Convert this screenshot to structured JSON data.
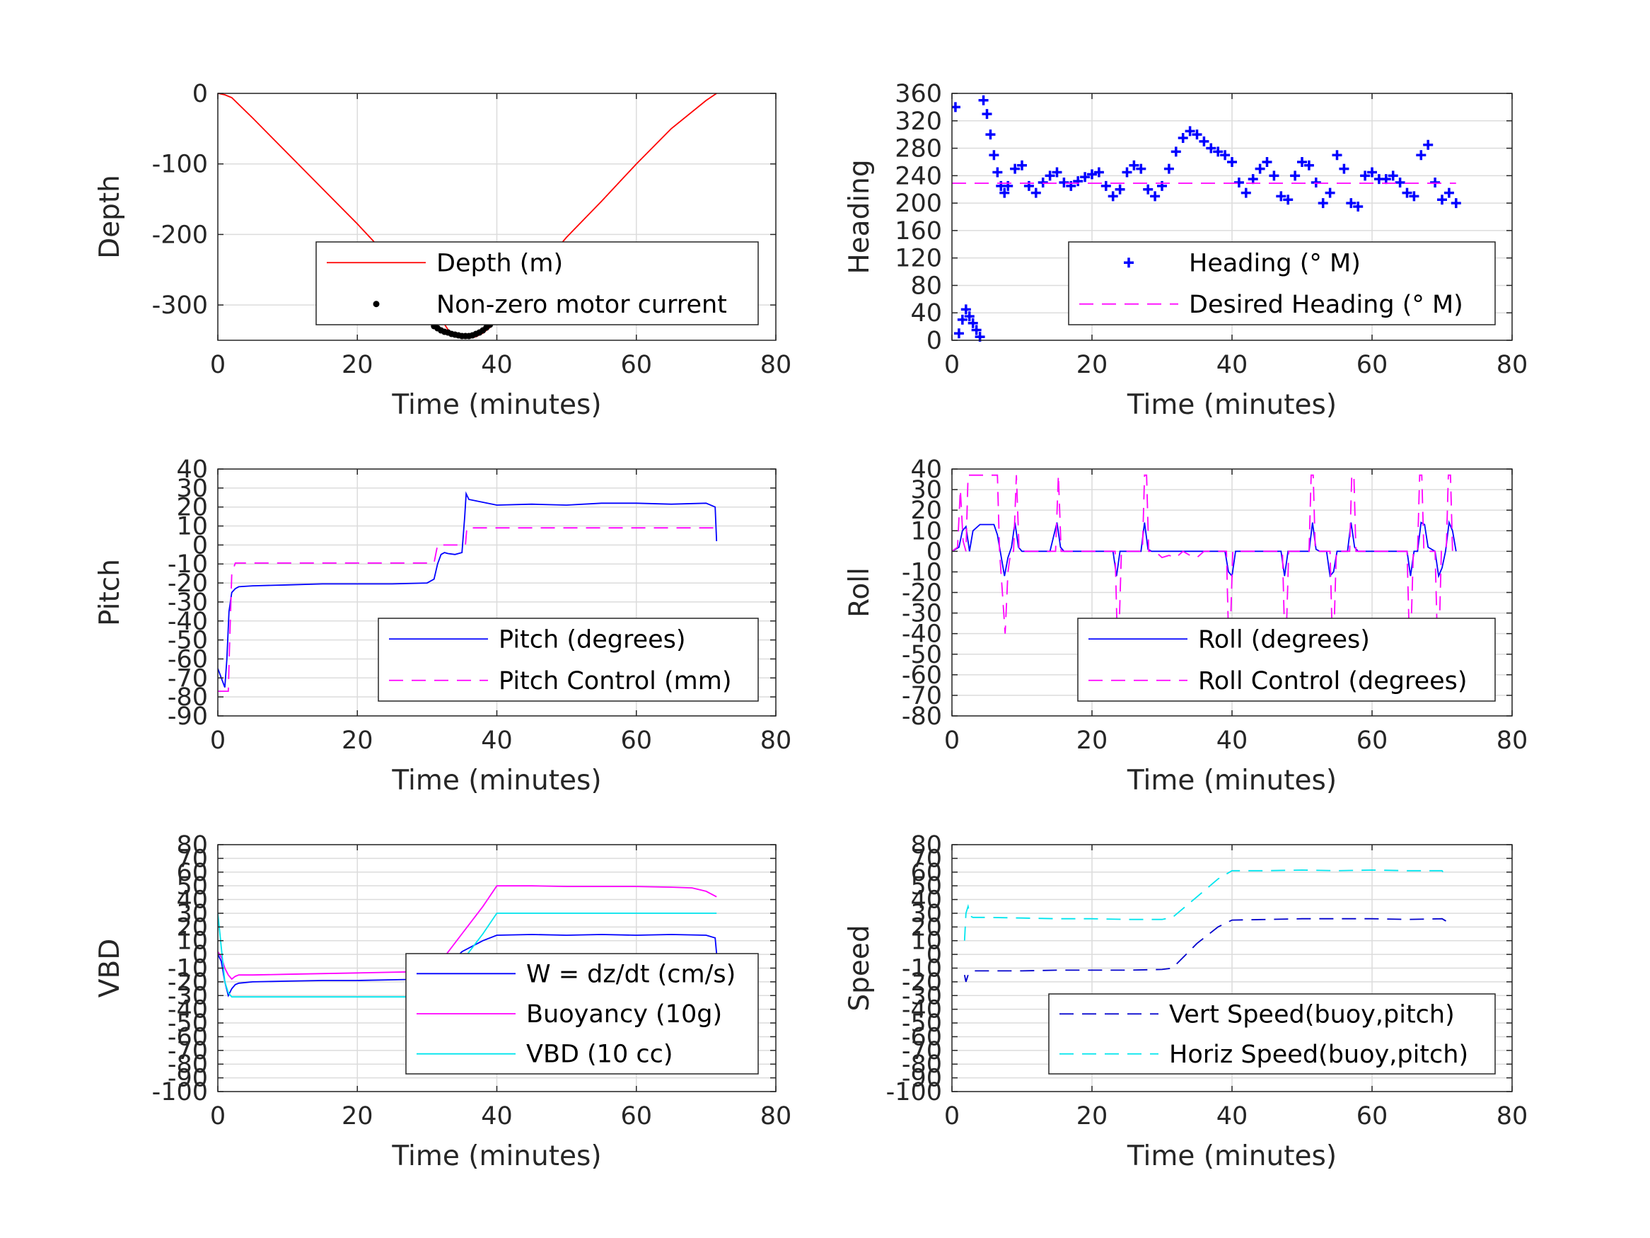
{
  "chart_data": [
    {
      "type": "line",
      "xlabel": "Time (minutes)",
      "ylabel": "Depth",
      "xlim": [
        0,
        80
      ],
      "ylim": [
        -350,
        0
      ],
      "xticks": [
        0,
        20,
        40,
        60,
        80
      ],
      "yticks": [
        0,
        -100,
        -200,
        -300
      ],
      "legend_position": "bottom-right",
      "series": [
        {
          "name": "Depth (m)",
          "color": "#ff0000",
          "style": "solid",
          "x": [
            0,
            1,
            2,
            5,
            10,
            15,
            20,
            25,
            30,
            31,
            32,
            33,
            34,
            35,
            36,
            37,
            38,
            39,
            40,
            45,
            50,
            55,
            60,
            65,
            70,
            71.5
          ],
          "y": [
            0,
            -2,
            -6,
            -35,
            -85,
            -135,
            -185,
            -238,
            -290,
            -300,
            -320,
            -335,
            -343,
            -346,
            -347,
            -345,
            -340,
            -332,
            -320,
            -262,
            -204,
            -153,
            -100,
            -50,
            -10,
            0
          ]
        },
        {
          "name": "Non-zero motor current",
          "color": "#000000",
          "style": "dots",
          "x": [
            31,
            31.5,
            32,
            32.5,
            33,
            33.5,
            34,
            34.5,
            35,
            35.5,
            36,
            36.5,
            37,
            37.5,
            38,
            38.5,
            39,
            39.5,
            40
          ],
          "y": [
            -330,
            -333,
            -336,
            -338,
            -339,
            -341,
            -342,
            -343,
            -344,
            -344,
            -344,
            -343,
            -341,
            -339,
            -336,
            -332,
            -328,
            -324,
            -320
          ]
        }
      ]
    },
    {
      "type": "line",
      "xlabel": "Time (minutes)",
      "ylabel": "Heading",
      "xlim": [
        0,
        80
      ],
      "ylim": [
        0,
        360
      ],
      "xticks": [
        0,
        20,
        40,
        60,
        80
      ],
      "yticks": [
        0,
        40,
        80,
        120,
        160,
        200,
        240,
        280,
        320,
        360
      ],
      "legend_position": "bottom-right",
      "series": [
        {
          "name": "Heading (° M)",
          "color": "#0000ff",
          "style": "plus",
          "x": [
            0.5,
            1,
            1.5,
            2,
            2.5,
            3,
            3.5,
            4,
            4.5,
            5,
            5.5,
            6,
            6.5,
            7,
            7.5,
            8,
            9,
            10,
            11,
            12,
            13,
            14,
            15,
            16,
            17,
            18,
            19,
            20,
            21,
            22,
            23,
            24,
            25,
            26,
            27,
            28,
            29,
            30,
            31,
            32,
            33,
            34,
            35,
            36,
            37,
            38,
            39,
            40,
            41,
            42,
            43,
            44,
            45,
            46,
            47,
            48,
            49,
            50,
            51,
            52,
            53,
            54,
            55,
            56,
            57,
            58,
            59,
            60,
            61,
            62,
            63,
            64,
            65,
            66,
            67,
            68,
            69,
            70,
            71,
            72
          ],
          "y": [
            340,
            10,
            30,
            45,
            35,
            25,
            15,
            5,
            350,
            330,
            300,
            270,
            245,
            225,
            215,
            225,
            250,
            255,
            225,
            215,
            230,
            240,
            245,
            230,
            225,
            232,
            238,
            242,
            245,
            225,
            210,
            220,
            245,
            255,
            250,
            220,
            210,
            225,
            250,
            275,
            295,
            305,
            300,
            290,
            280,
            275,
            270,
            260,
            230,
            215,
            235,
            250,
            260,
            240,
            210,
            205,
            240,
            260,
            255,
            230,
            200,
            215,
            270,
            250,
            200,
            195,
            240,
            245,
            235,
            235,
            240,
            230,
            215,
            210,
            270,
            285,
            230,
            205,
            215,
            200
          ]
        },
        {
          "name": "Desired Heading (° M)",
          "color": "#ff00ff",
          "style": "dashed",
          "x": [
            0,
            72
          ],
          "y": [
            229,
            229
          ]
        }
      ]
    },
    {
      "type": "line",
      "xlabel": "Time (minutes)",
      "ylabel": "Pitch",
      "xlim": [
        0,
        80
      ],
      "ylim": [
        -90,
        40
      ],
      "xticks": [
        0,
        20,
        40,
        60,
        80
      ],
      "yticks": [
        40,
        30,
        20,
        10,
        0,
        -10,
        -20,
        -30,
        -40,
        -50,
        -60,
        -70,
        -80,
        -90
      ],
      "legend_position": "bottom-right",
      "series": [
        {
          "name": "Pitch (degrees)",
          "color": "#0000ff",
          "style": "solid",
          "x": [
            0,
            0.5,
            1,
            1.3,
            1.6,
            2,
            2.5,
            3,
            5,
            10,
            15,
            20,
            25,
            30,
            31,
            31.5,
            32,
            32.5,
            33,
            34,
            35,
            35.4,
            35.6,
            36,
            40,
            45,
            50,
            55,
            60,
            65,
            70,
            71.3,
            71.5
          ],
          "y": [
            -65,
            -70,
            -75,
            -60,
            -35,
            -25,
            -23,
            -22,
            -21.5,
            -21,
            -20.5,
            -20.5,
            -20.5,
            -20,
            -18,
            -10,
            -5,
            -4,
            -4.5,
            -5,
            -4,
            15,
            27,
            24,
            21,
            21.5,
            21,
            22,
            22,
            21.5,
            22,
            20,
            2
          ]
        },
        {
          "name": "Pitch Control (mm)",
          "color": "#ff00ff",
          "style": "dashed",
          "x": [
            0,
            1.5,
            1.7,
            2,
            2.5,
            30,
            31,
            31.5,
            35.5,
            35.7,
            71.5
          ],
          "y": [
            -77,
            -77,
            -50,
            -15,
            -9.5,
            -9.5,
            -9.5,
            0,
            0,
            9,
            9
          ]
        }
      ]
    },
    {
      "type": "line",
      "xlabel": "Time (minutes)",
      "ylabel": "Roll",
      "xlim": [
        0,
        80
      ],
      "ylim": [
        -80,
        40
      ],
      "xticks": [
        0,
        20,
        40,
        60,
        80
      ],
      "yticks": [
        40,
        30,
        20,
        10,
        0,
        -10,
        -20,
        -30,
        -40,
        -50,
        -60,
        -70,
        -80
      ],
      "legend_position": "bottom-right",
      "series": [
        {
          "name": "Roll (degrees)",
          "color": "#0000ff",
          "style": "solid",
          "x": [
            0,
            1,
            1.5,
            2,
            2.5,
            3,
            4,
            5,
            6,
            6.5,
            7,
            7.5,
            8,
            8.5,
            9,
            9.5,
            10,
            10.5,
            11,
            14,
            15,
            15.5,
            16,
            20,
            23,
            23.5,
            24,
            24.5,
            27,
            27.5,
            28,
            28.5,
            30,
            35,
            39,
            39.5,
            40,
            40.5,
            41,
            47,
            47.5,
            48,
            48.5,
            51,
            51.5,
            52,
            52.5,
            53.5,
            54,
            54.5,
            55,
            56.5,
            57,
            57.5,
            58,
            60,
            65,
            65.5,
            66,
            66.5,
            67,
            67.5,
            68,
            69,
            69.5,
            70,
            70.5,
            71,
            71.5,
            72
          ],
          "y": [
            0,
            2,
            10,
            12,
            0,
            10,
            13,
            13,
            13,
            8,
            -2,
            -12,
            -3,
            2,
            14,
            2,
            0,
            0,
            0,
            0,
            14,
            2,
            0,
            0,
            0,
            -12,
            0,
            0,
            0,
            14,
            1,
            0,
            0,
            0,
            0,
            -10,
            -12,
            0,
            0,
            0,
            -12,
            0,
            0,
            0,
            14,
            1,
            0,
            0,
            -12,
            -10,
            0,
            0,
            14,
            2,
            0,
            0,
            0,
            -12,
            0,
            0,
            14,
            13,
            2,
            0,
            -12,
            -8,
            0,
            14,
            10,
            0
          ]
        },
        {
          "name": "Roll Control (degrees)",
          "color": "#ff00ff",
          "style": "dashed",
          "x": [
            0,
            0.8,
            1.2,
            1.6,
            2,
            2.3,
            2.6,
            4,
            4.5,
            6,
            6.5,
            6.8,
            7.2,
            7.6,
            8,
            8.4,
            8.8,
            9.2,
            9.6,
            10,
            14.8,
            15.2,
            15.6,
            16,
            23.3,
            23.6,
            23.9,
            24.2,
            27.2,
            27.5,
            27.8,
            28.1,
            29,
            30,
            31,
            32,
            33,
            34,
            35,
            36,
            39.2,
            39.5,
            39.8,
            40.1,
            47.2,
            47.5,
            47.8,
            48.1,
            51,
            51.3,
            51.6,
            51.9,
            54,
            54.3,
            54.6,
            54.9,
            56.8,
            57.1,
            57.4,
            57.7,
            65,
            65.3,
            65.6,
            65.9,
            66.5,
            66.8,
            67.1,
            67.4,
            69,
            69.3,
            69.6,
            69.9,
            70.6,
            70.9,
            71.2,
            71.5
          ],
          "y": [
            0,
            2,
            30,
            5,
            0,
            37,
            37,
            37,
            37,
            37,
            37,
            0,
            -20,
            -40,
            -10,
            0,
            0,
            37,
            0,
            0,
            0,
            37,
            0,
            0,
            0,
            -40,
            -35,
            0,
            0,
            37,
            37,
            0,
            0,
            -3,
            -2,
            -3,
            0,
            -2,
            -3,
            0,
            0,
            -40,
            -35,
            0,
            0,
            -40,
            -35,
            0,
            0,
            37,
            37,
            0,
            0,
            -40,
            -35,
            0,
            0,
            37,
            37,
            0,
            0,
            -40,
            -35,
            0,
            0,
            37,
            37,
            0,
            0,
            -40,
            -40,
            0,
            0,
            37,
            37,
            0
          ]
        }
      ]
    },
    {
      "type": "line",
      "xlabel": "Time (minutes)",
      "ylabel": "VBD",
      "xlim": [
        0,
        80
      ],
      "ylim": [
        -100,
        80
      ],
      "xticks": [
        0,
        20,
        40,
        60,
        80
      ],
      "yticks": [
        80,
        70,
        60,
        50,
        40,
        30,
        20,
        10,
        0,
        -10,
        -20,
        -30,
        -40,
        -50,
        -60,
        -70,
        -80,
        -90,
        -100
      ],
      "legend_position": "bottom-right",
      "series": [
        {
          "name": "W = dz/dt (cm/s)",
          "color": "#0000ff",
          "style": "solid",
          "x": [
            0,
            0.5,
            1,
            1.5,
            2,
            2.5,
            3,
            5,
            10,
            15,
            20,
            25,
            30,
            31,
            32,
            33,
            35,
            38,
            40,
            45,
            50,
            55,
            60,
            65,
            70,
            71.3,
            71.6
          ],
          "y": [
            0,
            -5,
            -20,
            -30,
            -25,
            -22,
            -21,
            -20,
            -19.5,
            -19,
            -19,
            -18.5,
            -18,
            -16,
            -13,
            -8,
            2,
            10,
            14,
            14.5,
            14,
            14.5,
            14,
            14.5,
            14,
            12,
            -5
          ]
        },
        {
          "name": "Buoyancy (10g)",
          "color": "#ff00ff",
          "style": "solid",
          "x": [
            0,
            0.5,
            1,
            1.5,
            2,
            2.5,
            3,
            5,
            10,
            20,
            30,
            31,
            32,
            35,
            38,
            40,
            45,
            50,
            55,
            60,
            65,
            68,
            70,
            71.5
          ],
          "y": [
            2,
            -2,
            -10,
            -15,
            -18,
            -16,
            -15,
            -15,
            -14.5,
            -13.5,
            -12.5,
            -10,
            -5,
            15,
            35,
            50,
            50,
            49.5,
            49.5,
            49.5,
            49,
            48.5,
            46,
            42
          ]
        },
        {
          "name": "VBD (10 cc)",
          "color": "#00e5ee",
          "style": "solid",
          "x": [
            0,
            0.5,
            1,
            1.5,
            2,
            2.5,
            3,
            10,
            20,
            30,
            31,
            32,
            35,
            38,
            40,
            50,
            60,
            70,
            71.5
          ],
          "y": [
            30,
            5,
            -20,
            -28,
            -31,
            -31,
            -31,
            -31,
            -31,
            -31,
            -31,
            -25,
            -5,
            15,
            30,
            30,
            30,
            30,
            30
          ]
        }
      ]
    },
    {
      "type": "line",
      "xlabel": "Time (minutes)",
      "ylabel": "Speed",
      "xlim": [
        0,
        80
      ],
      "ylim": [
        -100,
        80
      ],
      "xticks": [
        0,
        20,
        40,
        60,
        80
      ],
      "yticks": [
        80,
        70,
        60,
        50,
        40,
        30,
        20,
        10,
        0,
        -10,
        -20,
        -30,
        -40,
        -50,
        -60,
        -70,
        -80,
        -90,
        -100
      ],
      "legend_position": "bottom-right",
      "series": [
        {
          "name": "Vert Speed(buoy,pitch)",
          "color": "#0000cd",
          "style": "dashed",
          "x": [
            1.8,
            2,
            2.3,
            2.6,
            3,
            5,
            10,
            15,
            20,
            25,
            30,
            31.5,
            35,
            38,
            40,
            45,
            50,
            55,
            60,
            65,
            70,
            71,
            71.5
          ],
          "y": [
            -15,
            -20,
            -15,
            -13,
            -12,
            -12,
            -12,
            -11.5,
            -11.5,
            -11.5,
            -11,
            -10,
            8,
            20,
            25,
            25.5,
            26,
            26,
            26,
            25.5,
            26,
            23,
            22
          ]
        },
        {
          "name": "Horiz Speed(buoy,pitch)",
          "color": "#00e5ee",
          "style": "dashed",
          "x": [
            1.8,
            2,
            2.3,
            2.6,
            3,
            5,
            10,
            15,
            20,
            25,
            30,
            31.5,
            35,
            38,
            40,
            45,
            50,
            55,
            60,
            65,
            70,
            70.5
          ],
          "y": [
            10,
            30,
            35,
            28,
            27,
            27,
            26.5,
            26,
            26,
            25.5,
            25.5,
            27,
            42,
            55,
            61,
            61,
            61.5,
            61,
            61.5,
            61,
            61,
            57
          ]
        }
      ]
    }
  ]
}
